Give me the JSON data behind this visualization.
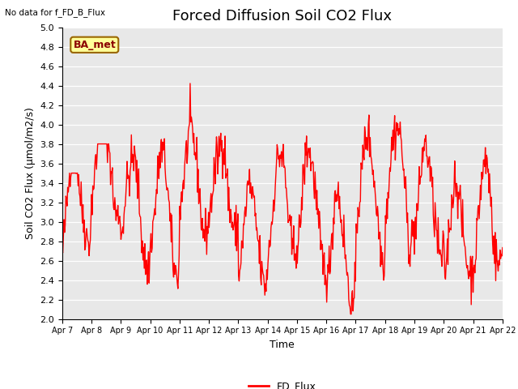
{
  "title": "Forced Diffusion Soil CO2 Flux",
  "xlabel": "Time",
  "ylabel": "Soil CO2 Flux (μmol/m2/s)",
  "ylim": [
    2.0,
    5.0
  ],
  "yticks": [
    2.0,
    2.2,
    2.4,
    2.6,
    2.8,
    3.0,
    3.2,
    3.4,
    3.6,
    3.8,
    4.0,
    4.2,
    4.4,
    4.6,
    4.8,
    5.0
  ],
  "line_color": "red",
  "line_width": 1.0,
  "background_color": "#ffffff",
  "plot_bg_color": "#e8e8e8",
  "top_left_text": "No data for f_FD_B_Flux",
  "legend_label": "FD_Flux",
  "legend_color": "red",
  "box_label": "BA_met",
  "box_facecolor": "#ffff99",
  "box_edgecolor": "#996600",
  "xtick_labels": [
    "Apr 7",
    "Apr 8",
    "Apr 9",
    "Apr 10",
    "Apr 11",
    "Apr 12",
    "Apr 13",
    "Apr 14",
    "Apr 15",
    "Apr 16",
    "Apr 17",
    "Apr 18",
    "Apr 19",
    "Apr 20",
    "Apr 21",
    "Apr 22"
  ],
  "title_fontsize": 13,
  "axis_fontsize": 9,
  "tick_fontsize": 8,
  "n_days": 15,
  "pts_per_day": 48,
  "seed": 42
}
